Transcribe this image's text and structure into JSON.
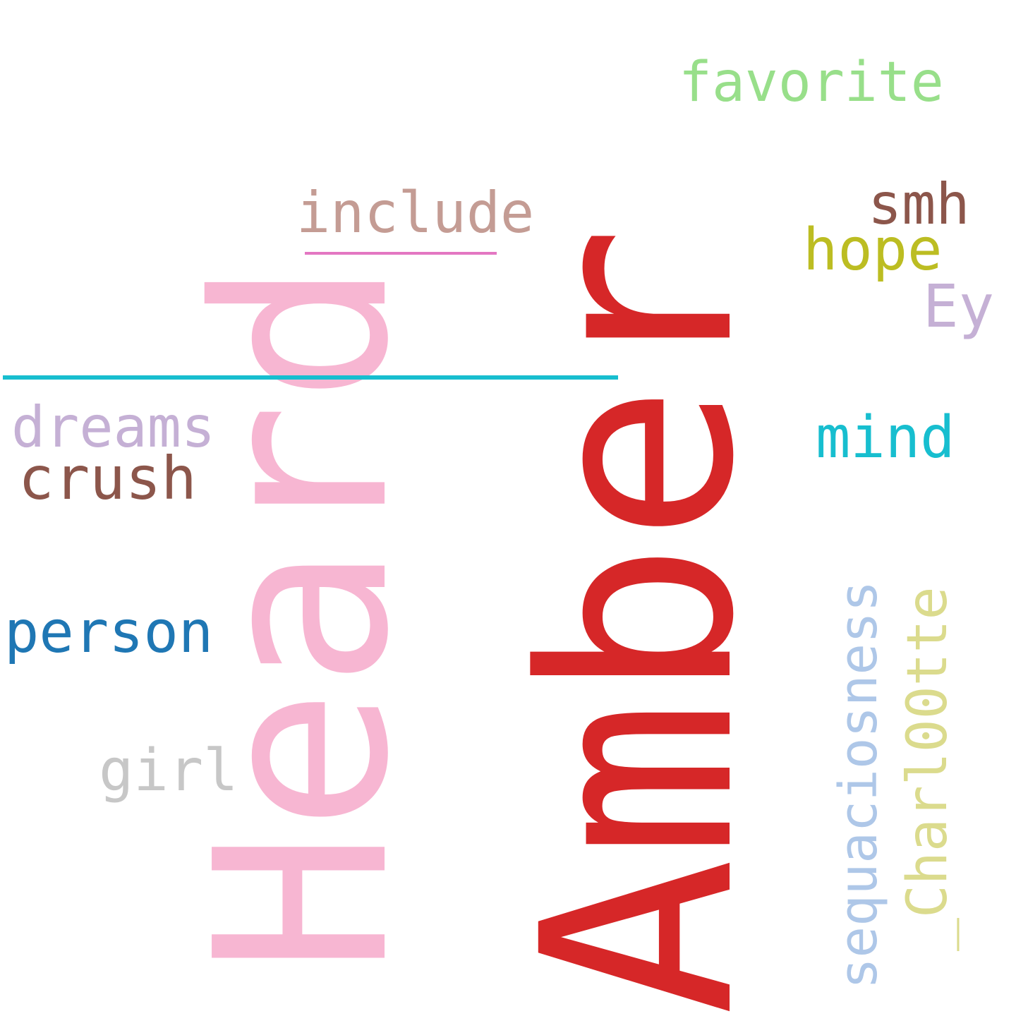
{
  "words": [
    {
      "key": "amber",
      "text": "Amber",
      "color": "#d62728",
      "orientation": "vertical"
    },
    {
      "key": "heard",
      "text": "Heard",
      "color": "#f7b6d2",
      "orientation": "vertical"
    },
    {
      "key": "favorite",
      "text": "favorite",
      "color": "#98df8a",
      "orientation": "horizontal"
    },
    {
      "key": "include",
      "text": "include",
      "color": "#c49c94",
      "orientation": "horizontal"
    },
    {
      "key": "smh",
      "text": "smh",
      "color": "#8c564b",
      "orientation": "horizontal"
    },
    {
      "key": "hope",
      "text": "hope",
      "color": "#bcbd22",
      "orientation": "horizontal"
    },
    {
      "key": "ey",
      "text": "Ey",
      "color": "#c5b0d5",
      "orientation": "horizontal"
    },
    {
      "key": "dreams",
      "text": "dreams",
      "color": "#c5b0d5",
      "orientation": "horizontal"
    },
    {
      "key": "crush",
      "text": "crush",
      "color": "#8c564b",
      "orientation": "horizontal"
    },
    {
      "key": "mind",
      "text": "mind",
      "color": "#17becf",
      "orientation": "horizontal"
    },
    {
      "key": "person",
      "text": "person",
      "color": "#1f77b4",
      "orientation": "horizontal"
    },
    {
      "key": "girl",
      "text": "girl",
      "color": "#c7c7c7",
      "orientation": "horizontal"
    },
    {
      "key": "sequaciosness",
      "text": "sequaciosness",
      "color": "#aec7e8",
      "orientation": "vertical"
    },
    {
      "key": "charl",
      "text": "_Charl00tte",
      "color": "#dbdb8d",
      "orientation": "vertical"
    }
  ],
  "colors": {
    "underscore_long": "#17becf",
    "underscore_short": "#e377c2"
  }
}
